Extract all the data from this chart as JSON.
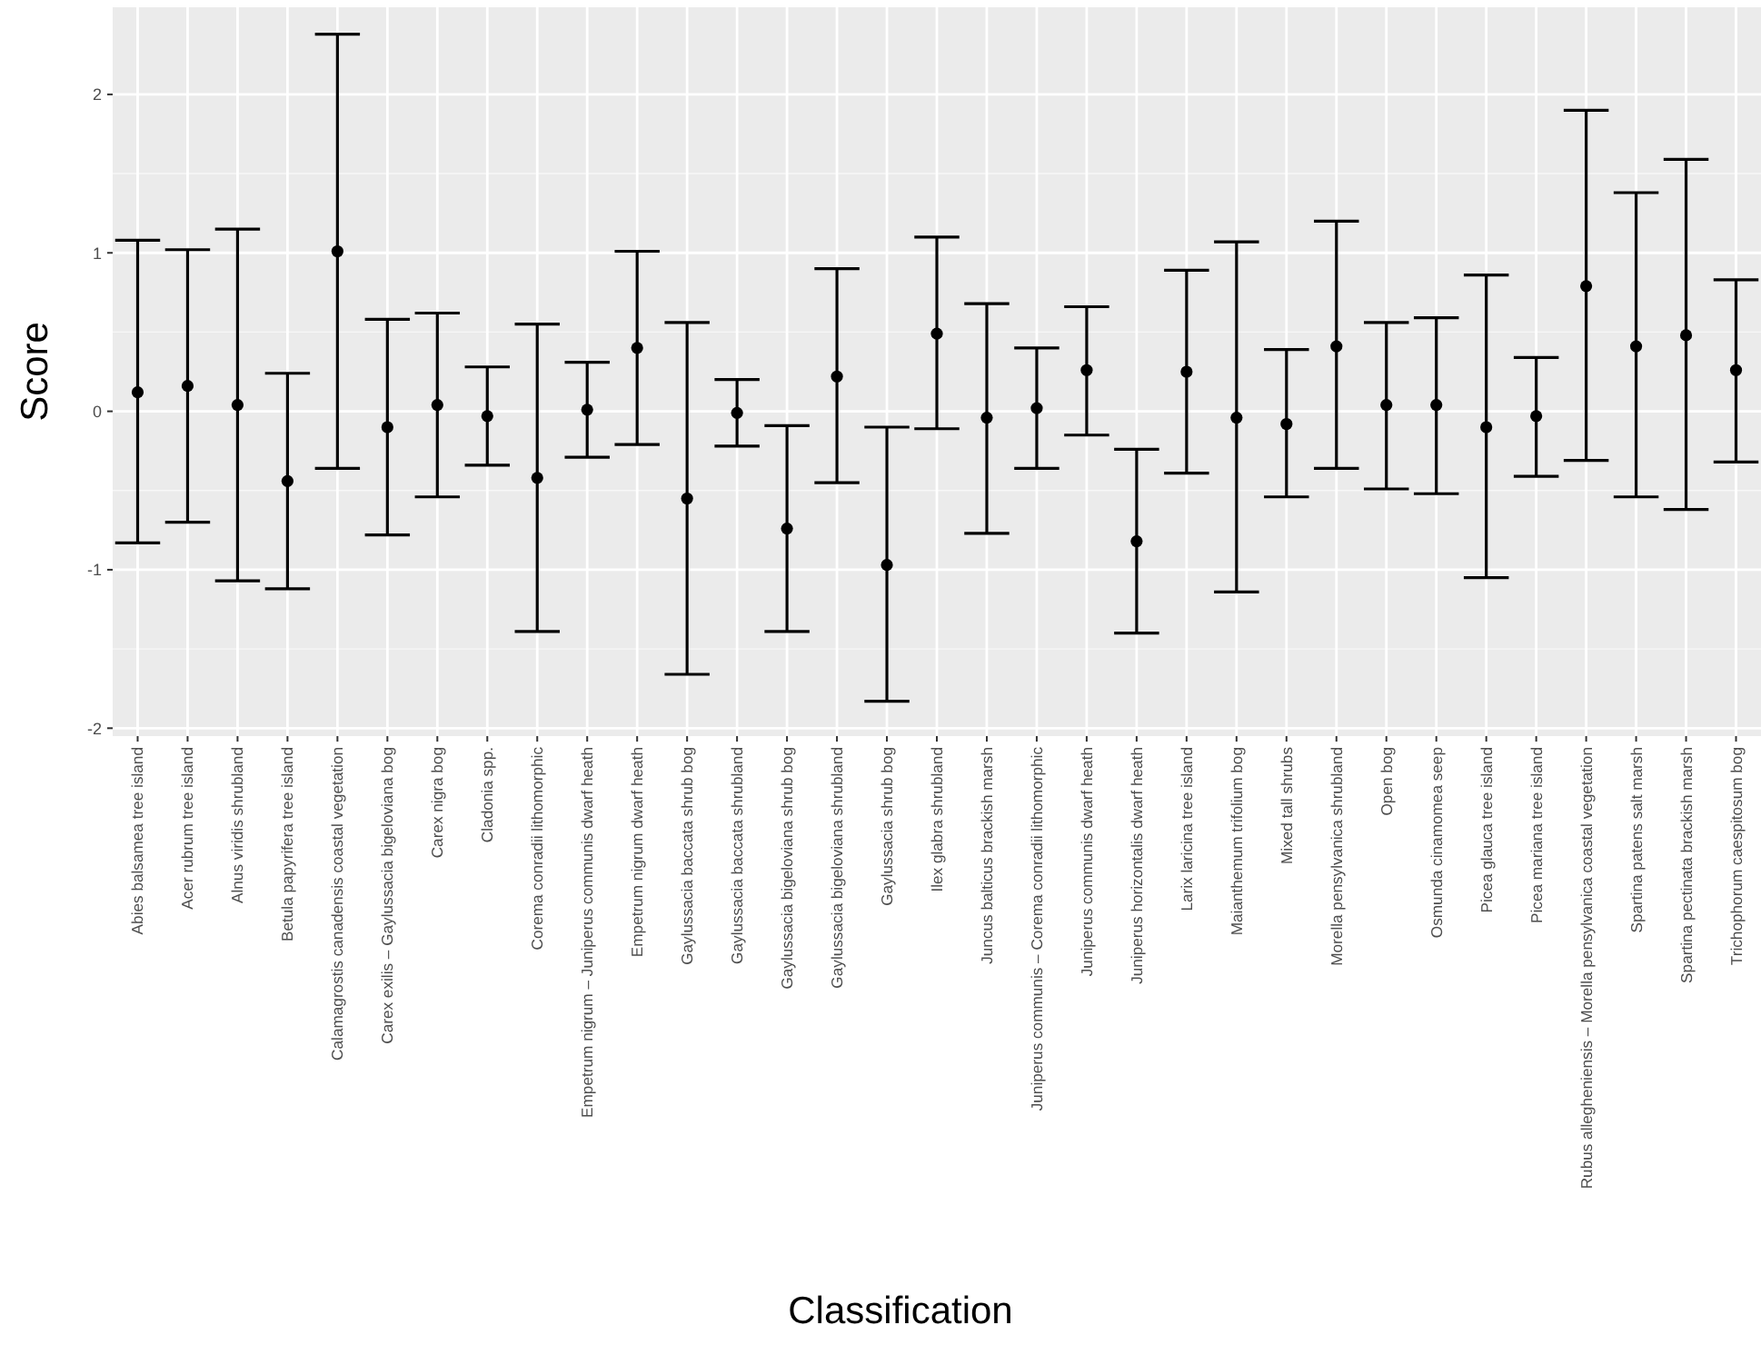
{
  "chart_data": {
    "type": "scatter",
    "xlabel": "Classification",
    "ylabel": "Score",
    "categories": [
      "Abies balsamea tree island",
      "Acer rubrum tree island",
      "Alnus viridis shrubland",
      "Betula papyrifera tree island",
      "Calamagrostis canadensis coastal vegetation",
      "Carex exilis – Gaylussacia bigeloviana bog",
      "Carex nigra bog",
      "Cladonia spp.",
      "Corema conradii lithomorphic",
      "Empetrum nigrum – Juniperus communis dwarf heath",
      "Empetrum nigrum dwarf heath",
      "Gaylussacia baccata shrub bog",
      "Gaylussacia baccata shrubland",
      "Gaylussacia bigeloviana shrub bog",
      "Gaylussacia bigeloviana shrubland",
      "Gaylussacia shrub bog",
      "Ilex glabra shrubland",
      "Juncus balticus brackish marsh",
      "Juniperus communis – Corema conradii lithomorphic",
      "Juniperus communis dwarf heath",
      "Juniperus horizontalis dwarf heath",
      "Larix laricina tree island",
      "Maianthemum trifolium bog",
      "Mixed tall shrubs",
      "Morella pensylvanica shrubland",
      "Open bog",
      "Osmunda cinamomea seep",
      "Picea glauca tree island",
      "Picea mariana tree island",
      "Rubus allegheniensis – Morella pensylvanica coastal vegetation",
      "Spartina patens salt marsh",
      "Spartina pectinata brackish marsh",
      "Trichophorum caespitosum bog"
    ],
    "values": [
      0.12,
      0.16,
      0.04,
      -0.44,
      1.01,
      -0.1,
      0.04,
      -0.03,
      -0.42,
      0.01,
      0.4,
      -0.55,
      -0.01,
      -0.74,
      0.22,
      -0.97,
      0.49,
      -0.04,
      0.02,
      0.26,
      -0.82,
      0.25,
      -0.04,
      -0.08,
      0.41,
      0.04,
      0.04,
      -0.1,
      -0.03,
      0.79,
      0.41,
      0.48,
      0.26
    ],
    "errors": [
      [
        -0.83,
        1.08
      ],
      [
        -0.7,
        1.02
      ],
      [
        -1.07,
        1.15
      ],
      [
        -1.12,
        0.24
      ],
      [
        -0.36,
        2.38
      ],
      [
        -0.78,
        0.58
      ],
      [
        -0.54,
        0.62
      ],
      [
        -0.34,
        0.28
      ],
      [
        -1.39,
        0.55
      ],
      [
        -0.29,
        0.31
      ],
      [
        -0.21,
        1.01
      ],
      [
        -1.66,
        0.56
      ],
      [
        -0.22,
        0.2
      ],
      [
        -1.39,
        -0.09
      ],
      [
        -0.45,
        0.9
      ],
      [
        -1.83,
        -0.1
      ],
      [
        -0.11,
        1.1
      ],
      [
        -0.77,
        0.68
      ],
      [
        -0.36,
        0.4
      ],
      [
        -0.15,
        0.66
      ],
      [
        -1.4,
        -0.24
      ],
      [
        -0.39,
        0.89
      ],
      [
        -1.14,
        1.07
      ],
      [
        -0.54,
        0.39
      ],
      [
        -0.36,
        1.2
      ],
      [
        -0.49,
        0.56
      ],
      [
        -0.52,
        0.59
      ],
      [
        -1.05,
        0.86
      ],
      [
        -0.41,
        0.34
      ],
      [
        -0.31,
        1.9
      ],
      [
        -0.54,
        1.38
      ],
      [
        -0.62,
        1.59
      ],
      [
        -0.32,
        0.83
      ]
    ],
    "color": "#000000",
    "marker": "circle",
    "ylim": [
      -2.05,
      2.55
    ],
    "yticks": [
      -2,
      -1,
      0,
      1,
      2
    ],
    "grid": true
  }
}
